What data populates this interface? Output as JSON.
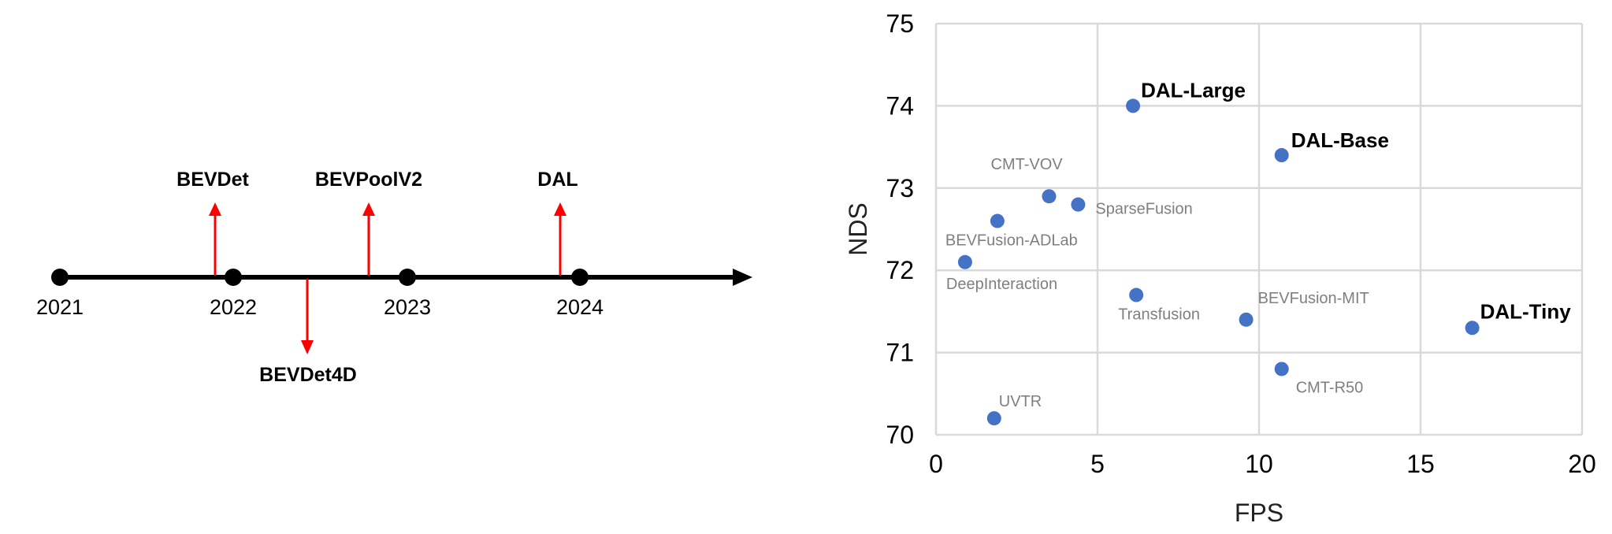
{
  "colors": {
    "axis_line": "#000000",
    "arrow": "#ff0000",
    "marker": "#4472c4",
    "grid": "#d9d9d9"
  },
  "timeline": {
    "years": [
      "2021",
      "2022",
      "2023",
      "2024"
    ],
    "events": [
      {
        "name": "BEVDet",
        "direction": "up"
      },
      {
        "name": "BEVDet4D",
        "direction": "down"
      },
      {
        "name": "BEVPoolV2",
        "direction": "up"
      },
      {
        "name": "DAL",
        "direction": "up"
      }
    ]
  },
  "chart_data": {
    "type": "scatter",
    "xlabel": "FPS",
    "ylabel": "NDS",
    "xlim": [
      0,
      20
    ],
    "ylim": [
      70,
      75
    ],
    "xticks": [
      "0",
      "5",
      "10",
      "15",
      "20"
    ],
    "yticks": [
      "70",
      "71",
      "72",
      "73",
      "74",
      "75"
    ],
    "grid": true,
    "points": [
      {
        "label": "DAL-Large",
        "x": 6.1,
        "y": 74.0,
        "emphasis": true
      },
      {
        "label": "DAL-Base",
        "x": 10.7,
        "y": 73.4,
        "emphasis": true
      },
      {
        "label": "DAL-Tiny",
        "x": 16.6,
        "y": 71.3,
        "emphasis": true
      },
      {
        "label": "CMT-VOV",
        "x": 3.5,
        "y": 72.9,
        "emphasis": false
      },
      {
        "label": "SparseFusion",
        "x": 4.4,
        "y": 72.8,
        "emphasis": false
      },
      {
        "label": "BEVFusion-ADLab",
        "x": 1.9,
        "y": 72.6,
        "emphasis": false
      },
      {
        "label": "DeepInteraction",
        "x": 0.9,
        "y": 72.1,
        "emphasis": false
      },
      {
        "label": "Transfusion",
        "x": 6.2,
        "y": 71.7,
        "emphasis": false
      },
      {
        "label": "BEVFusion-MIT",
        "x": 9.6,
        "y": 71.4,
        "emphasis": false
      },
      {
        "label": "CMT-R50",
        "x": 10.7,
        "y": 70.8,
        "emphasis": false
      },
      {
        "label": "UVTR",
        "x": 1.8,
        "y": 70.2,
        "emphasis": false
      }
    ]
  }
}
